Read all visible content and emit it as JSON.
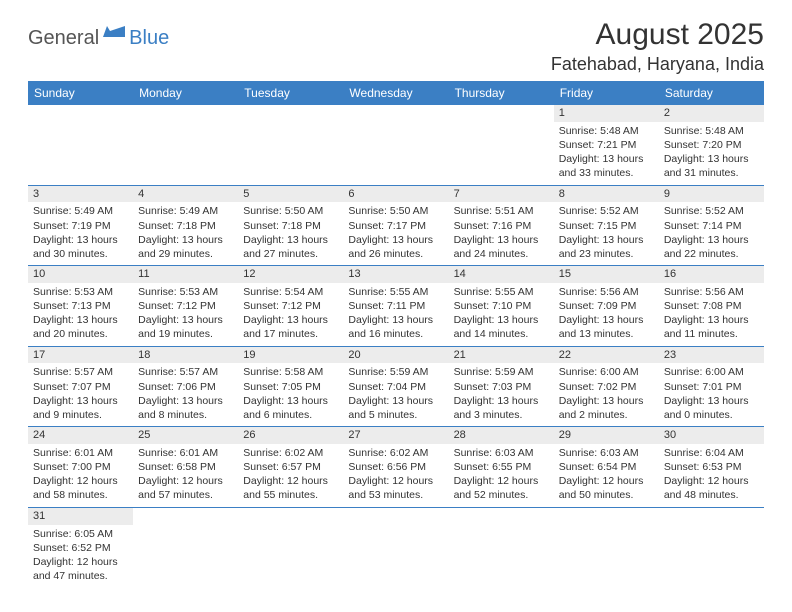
{
  "logo": {
    "general": "General",
    "blue": "Blue"
  },
  "title": "August 2025",
  "location": "Fatehabad, Haryana, India",
  "headers": [
    "Sunday",
    "Monday",
    "Tuesday",
    "Wednesday",
    "Thursday",
    "Friday",
    "Saturday"
  ],
  "colors": {
    "header_bg": "#3b7fc4",
    "header_text": "#ffffff",
    "daynum_bg": "#ececec",
    "border": "#3b7fc4",
    "text": "#333333",
    "logo_gray": "#555555",
    "logo_blue": "#3b7fc4"
  },
  "weeks": [
    [
      null,
      null,
      null,
      null,
      null,
      {
        "n": "1",
        "sunrise": "Sunrise: 5:48 AM",
        "sunset": "Sunset: 7:21 PM",
        "daylight": "Daylight: 13 hours and 33 minutes."
      },
      {
        "n": "2",
        "sunrise": "Sunrise: 5:48 AM",
        "sunset": "Sunset: 7:20 PM",
        "daylight": "Daylight: 13 hours and 31 minutes."
      }
    ],
    [
      {
        "n": "3",
        "sunrise": "Sunrise: 5:49 AM",
        "sunset": "Sunset: 7:19 PM",
        "daylight": "Daylight: 13 hours and 30 minutes."
      },
      {
        "n": "4",
        "sunrise": "Sunrise: 5:49 AM",
        "sunset": "Sunset: 7:18 PM",
        "daylight": "Daylight: 13 hours and 29 minutes."
      },
      {
        "n": "5",
        "sunrise": "Sunrise: 5:50 AM",
        "sunset": "Sunset: 7:18 PM",
        "daylight": "Daylight: 13 hours and 27 minutes."
      },
      {
        "n": "6",
        "sunrise": "Sunrise: 5:50 AM",
        "sunset": "Sunset: 7:17 PM",
        "daylight": "Daylight: 13 hours and 26 minutes."
      },
      {
        "n": "7",
        "sunrise": "Sunrise: 5:51 AM",
        "sunset": "Sunset: 7:16 PM",
        "daylight": "Daylight: 13 hours and 24 minutes."
      },
      {
        "n": "8",
        "sunrise": "Sunrise: 5:52 AM",
        "sunset": "Sunset: 7:15 PM",
        "daylight": "Daylight: 13 hours and 23 minutes."
      },
      {
        "n": "9",
        "sunrise": "Sunrise: 5:52 AM",
        "sunset": "Sunset: 7:14 PM",
        "daylight": "Daylight: 13 hours and 22 minutes."
      }
    ],
    [
      {
        "n": "10",
        "sunrise": "Sunrise: 5:53 AM",
        "sunset": "Sunset: 7:13 PM",
        "daylight": "Daylight: 13 hours and 20 minutes."
      },
      {
        "n": "11",
        "sunrise": "Sunrise: 5:53 AM",
        "sunset": "Sunset: 7:12 PM",
        "daylight": "Daylight: 13 hours and 19 minutes."
      },
      {
        "n": "12",
        "sunrise": "Sunrise: 5:54 AM",
        "sunset": "Sunset: 7:12 PM",
        "daylight": "Daylight: 13 hours and 17 minutes."
      },
      {
        "n": "13",
        "sunrise": "Sunrise: 5:55 AM",
        "sunset": "Sunset: 7:11 PM",
        "daylight": "Daylight: 13 hours and 16 minutes."
      },
      {
        "n": "14",
        "sunrise": "Sunrise: 5:55 AM",
        "sunset": "Sunset: 7:10 PM",
        "daylight": "Daylight: 13 hours and 14 minutes."
      },
      {
        "n": "15",
        "sunrise": "Sunrise: 5:56 AM",
        "sunset": "Sunset: 7:09 PM",
        "daylight": "Daylight: 13 hours and 13 minutes."
      },
      {
        "n": "16",
        "sunrise": "Sunrise: 5:56 AM",
        "sunset": "Sunset: 7:08 PM",
        "daylight": "Daylight: 13 hours and 11 minutes."
      }
    ],
    [
      {
        "n": "17",
        "sunrise": "Sunrise: 5:57 AM",
        "sunset": "Sunset: 7:07 PM",
        "daylight": "Daylight: 13 hours and 9 minutes."
      },
      {
        "n": "18",
        "sunrise": "Sunrise: 5:57 AM",
        "sunset": "Sunset: 7:06 PM",
        "daylight": "Daylight: 13 hours and 8 minutes."
      },
      {
        "n": "19",
        "sunrise": "Sunrise: 5:58 AM",
        "sunset": "Sunset: 7:05 PM",
        "daylight": "Daylight: 13 hours and 6 minutes."
      },
      {
        "n": "20",
        "sunrise": "Sunrise: 5:59 AM",
        "sunset": "Sunset: 7:04 PM",
        "daylight": "Daylight: 13 hours and 5 minutes."
      },
      {
        "n": "21",
        "sunrise": "Sunrise: 5:59 AM",
        "sunset": "Sunset: 7:03 PM",
        "daylight": "Daylight: 13 hours and 3 minutes."
      },
      {
        "n": "22",
        "sunrise": "Sunrise: 6:00 AM",
        "sunset": "Sunset: 7:02 PM",
        "daylight": "Daylight: 13 hours and 2 minutes."
      },
      {
        "n": "23",
        "sunrise": "Sunrise: 6:00 AM",
        "sunset": "Sunset: 7:01 PM",
        "daylight": "Daylight: 13 hours and 0 minutes."
      }
    ],
    [
      {
        "n": "24",
        "sunrise": "Sunrise: 6:01 AM",
        "sunset": "Sunset: 7:00 PM",
        "daylight": "Daylight: 12 hours and 58 minutes."
      },
      {
        "n": "25",
        "sunrise": "Sunrise: 6:01 AM",
        "sunset": "Sunset: 6:58 PM",
        "daylight": "Daylight: 12 hours and 57 minutes."
      },
      {
        "n": "26",
        "sunrise": "Sunrise: 6:02 AM",
        "sunset": "Sunset: 6:57 PM",
        "daylight": "Daylight: 12 hours and 55 minutes."
      },
      {
        "n": "27",
        "sunrise": "Sunrise: 6:02 AM",
        "sunset": "Sunset: 6:56 PM",
        "daylight": "Daylight: 12 hours and 53 minutes."
      },
      {
        "n": "28",
        "sunrise": "Sunrise: 6:03 AM",
        "sunset": "Sunset: 6:55 PM",
        "daylight": "Daylight: 12 hours and 52 minutes."
      },
      {
        "n": "29",
        "sunrise": "Sunrise: 6:03 AM",
        "sunset": "Sunset: 6:54 PM",
        "daylight": "Daylight: 12 hours and 50 minutes."
      },
      {
        "n": "30",
        "sunrise": "Sunrise: 6:04 AM",
        "sunset": "Sunset: 6:53 PM",
        "daylight": "Daylight: 12 hours and 48 minutes."
      }
    ],
    [
      {
        "n": "31",
        "sunrise": "Sunrise: 6:05 AM",
        "sunset": "Sunset: 6:52 PM",
        "daylight": "Daylight: 12 hours and 47 minutes."
      },
      null,
      null,
      null,
      null,
      null,
      null
    ]
  ]
}
